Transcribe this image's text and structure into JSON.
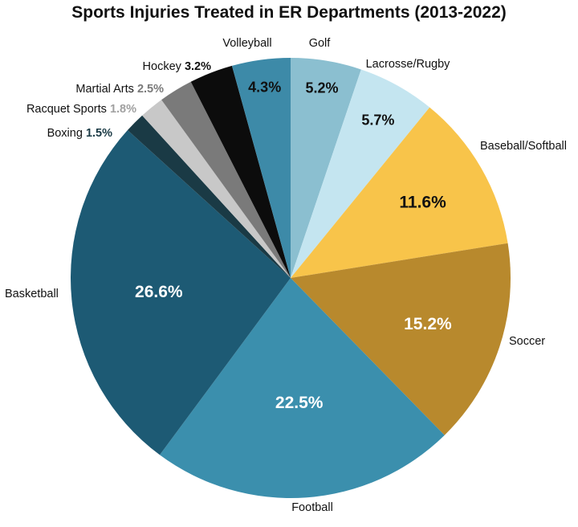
{
  "chart_data": {
    "type": "pie",
    "title": "Sports Injuries Treated in ER Departments (2013-2022)",
    "slices": [
      {
        "label": "Golf",
        "value": 5.2,
        "display": "5.2%",
        "color": "#8bbfd0",
        "label_color": "#111111"
      },
      {
        "label": "Lacrosse/Rugby",
        "value": 5.7,
        "display": "5.7%",
        "color": "#c4e5f0",
        "label_color": "#111111"
      },
      {
        "label": "Baseball/Softball",
        "value": 11.6,
        "display": "11.6%",
        "color": "#f8c44a",
        "label_color": "#111111"
      },
      {
        "label": "Soccer",
        "value": 15.2,
        "display": "15.2%",
        "color": "#b8892d",
        "label_color": "#ffffff"
      },
      {
        "label": "Football",
        "value": 22.5,
        "display": "22.5%",
        "color": "#3b8fad",
        "label_color": "#ffffff"
      },
      {
        "label": "Basketball",
        "value": 26.6,
        "display": "26.6%",
        "color": "#1d5a74",
        "label_color": "#ffffff"
      },
      {
        "label": "Boxing",
        "value": 1.5,
        "display": "1.5%",
        "color": "#1a3a45",
        "label_color": "#1a3a45"
      },
      {
        "label": "Racquet Sports",
        "value": 1.8,
        "display": "1.8%",
        "color": "#c8c8c8",
        "label_color": "#a0a0a0"
      },
      {
        "label": "Martial Arts",
        "value": 2.5,
        "display": "2.5%",
        "color": "#7a7a7a",
        "label_color": "#7a7a7a"
      },
      {
        "label": "Hockey",
        "value": 3.2,
        "display": "3.2%",
        "color": "#0c0c0c",
        "label_color": "#111111"
      },
      {
        "label": "Volleyball",
        "value": 4.3,
        "display": "4.3%",
        "color": "#3d8aa8",
        "label_color": "#111111"
      }
    ]
  }
}
